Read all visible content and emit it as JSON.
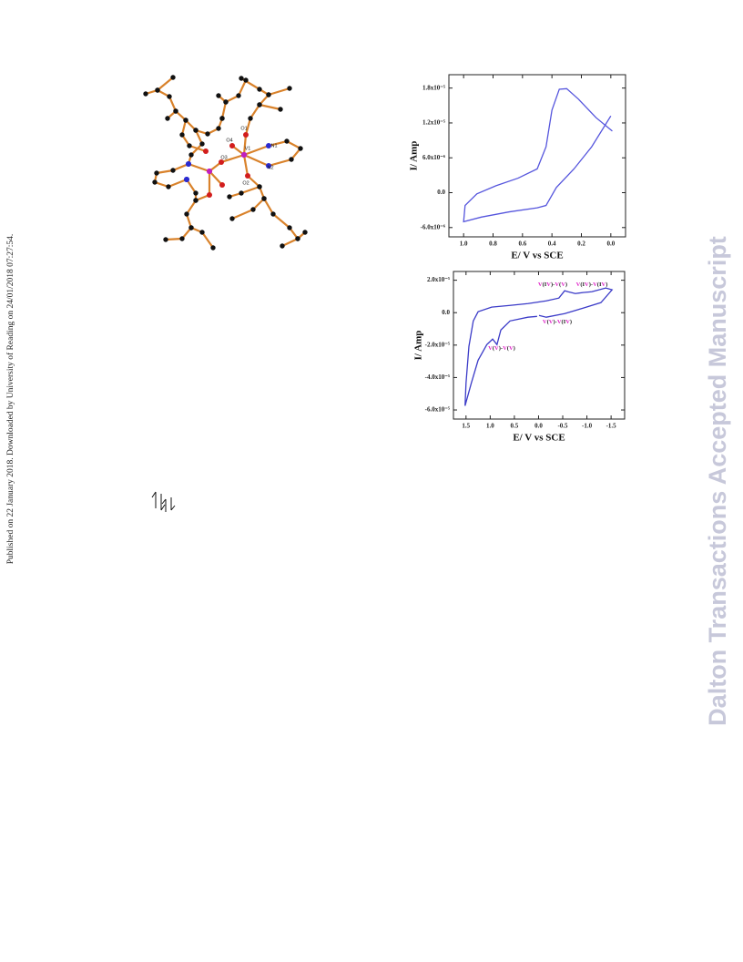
{
  "side_text": "Published on 22 January 2018. Downloaded by University of Reading on 24/01/2018 07:27:54.",
  "watermark": "Dalton Transactions Accepted Manuscript",
  "structure_labels": [
    "O1",
    "O4",
    "O3",
    "V1",
    "N1",
    "N2",
    "O2"
  ],
  "chart_data": [
    {
      "type": "line",
      "xlabel": "E/ V vs SCE",
      "ylabel": "I/ Amp",
      "color": "#5555dd",
      "xlim": [
        1.1,
        -0.1
      ],
      "ylim": [
        -7.6e-06,
        2.03e-05
      ],
      "xticks": [
        {
          "value": 1,
          "label": "1.0"
        },
        0.8,
        0.6,
        0.4,
        0.2,
        {
          "value": 0,
          "label": "0.0"
        }
      ],
      "yticks": [
        {
          "value": 1.8e-05,
          "label": "1.8x10⁻⁵"
        },
        {
          "value": 1.2e-05,
          "label": "1.2x10⁻⁵"
        },
        {
          "value": 6e-06,
          "label": "6.0x10⁻⁶"
        },
        {
          "value": 0,
          "label": "0.0"
        },
        {
          "value": -6e-06,
          "label": "-6.0x10⁻⁶"
        }
      ],
      "x": [
        0.0,
        0.13,
        0.25,
        0.37,
        0.44,
        0.5,
        0.69,
        0.88,
        1.0,
        0.99,
        0.91,
        0.78,
        0.63,
        0.5,
        0.44,
        0.4,
        0.35,
        0.3,
        0.22,
        0.1,
        -0.01
      ],
      "values": [
        1.32e-05,
        7.9e-06,
        4.1e-06,
        9e-07,
        -2.2e-06,
        -2.6e-06,
        -3.3e-06,
        -4.2e-06,
        -5e-06,
        -2.2e-06,
        -2e-07,
        1.2e-06,
        2.5e-06,
        4.1e-06,
        7.9e-06,
        1.42e-05,
        1.78e-05,
        1.79e-05,
        1.61e-05,
        1.29e-05,
        1.06e-05
      ]
    },
    {
      "type": "line",
      "xlabel": "E/ V vs SCE",
      "ylabel": "I/ Amp",
      "color": "#3b3bc8",
      "xlim": [
        1.76,
        -1.78
      ],
      "ylim": [
        -6.56e-05,
        2.54e-05
      ],
      "xticks": [
        1.5,
        {
          "value": 1,
          "label": "1.0"
        },
        0.5,
        {
          "value": 0,
          "label": "0.0"
        },
        -0.5,
        {
          "value": -1,
          "label": "-1.0"
        },
        -1.5
      ],
      "yticks": [
        {
          "value": 2e-05,
          "label": "2.0x10⁻⁵"
        },
        {
          "value": 0,
          "label": "0.0"
        },
        {
          "value": -2e-05,
          "label": "-2.0x10⁻⁵"
        },
        {
          "value": -4e-05,
          "label": "-4.0x10⁻⁵"
        },
        {
          "value": -6e-05,
          "label": "-6.0x10⁻⁵"
        }
      ],
      "x": [
        -0.01,
        -0.16,
        -0.54,
        -0.92,
        -1.29,
        -1.52,
        -1.39,
        -1.1,
        -0.92,
        -0.76,
        -0.61,
        -0.54,
        -0.42,
        -0.16,
        0.22,
        0.59,
        0.97,
        1.25,
        1.35,
        1.44,
        1.5,
        1.52,
        1.39,
        1.25,
        1.07,
        0.95,
        0.86,
        0.78,
        0.59,
        0.22,
        0.03
      ],
      "values": [
        -1.7e-06,
        -2.8e-06,
        -6e-07,
        2.8e-06,
        6.2e-06,
        1.41e-05,
        1.52e-05,
        1.29e-05,
        1.24e-05,
        1.18e-05,
        1.29e-05,
        1.35e-05,
        9e-06,
        7.3e-06,
        5.6e-06,
        4.5e-06,
        3.4e-06,
        6e-07,
        -5.1e-06,
        -2.08e-05,
        -4.34e-05,
        -5.74e-05,
        -4.34e-05,
        -2.93e-05,
        -1.97e-05,
        -1.63e-05,
        -1.97e-05,
        -1.07e-05,
        -5.1e-06,
        -2.8e-06,
        -2.3e-06
      ],
      "annotations": [
        "V(IV)-V(V)",
        "V(IV)-V(IV)",
        "V(V)-V(IV)",
        "V(V)-V(V)"
      ]
    }
  ]
}
